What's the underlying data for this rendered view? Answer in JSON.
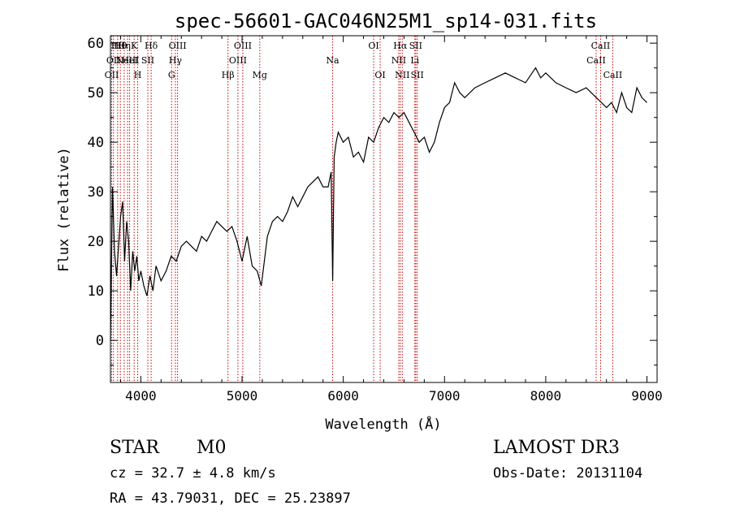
{
  "chart_data": {
    "type": "line",
    "title": "spec-56601-GAC046N25M1_sp14-031.fits",
    "xlabel": "Wavelength (Å)",
    "ylabel": "Flux (relative)",
    "xlim": [
      3700,
      9100
    ],
    "ylim": [
      -8.5,
      61.5
    ],
    "xticks": [
      4000,
      5000,
      6000,
      7000,
      8000,
      9000
    ],
    "yticks": [
      0,
      10,
      20,
      30,
      40,
      50,
      60
    ],
    "grid": false,
    "line_color": "#000000",
    "marker_color": "#cc0000",
    "series": [
      {
        "x": [
          3700,
          3720,
          3740,
          3760,
          3780,
          3800,
          3820,
          3840,
          3860,
          3880,
          3900,
          3920,
          3940,
          3960,
          3980,
          4000,
          4030,
          4060,
          4090,
          4120,
          4150,
          4200,
          4250,
          4300,
          4350,
          4400,
          4450,
          4500,
          4550,
          4600,
          4650,
          4700,
          4750,
          4800,
          4850,
          4900,
          4950,
          5000,
          5050,
          5100,
          5150,
          5190,
          5250,
          5300,
          5350,
          5400,
          5450,
          5500,
          5550,
          5600,
          5650,
          5700,
          5750,
          5800,
          5850,
          5880,
          5895,
          5910,
          5930,
          5950,
          6000,
          6050,
          6100,
          6150,
          6200,
          6250,
          6300,
          6350,
          6400,
          6450,
          6500,
          6550,
          6600,
          6650,
          6700,
          6750,
          6800,
          6850,
          6900,
          6950,
          7000,
          7050,
          7100,
          7150,
          7200,
          7300,
          7400,
          7500,
          7600,
          7700,
          7800,
          7900,
          7950,
          8000,
          8100,
          8200,
          8300,
          8400,
          8500,
          8550,
          8600,
          8650,
          8700,
          8750,
          8800,
          8850,
          8900,
          8950,
          9000
        ],
        "y": [
          0,
          31,
          18,
          13,
          19,
          25,
          28,
          16,
          24,
          20,
          10,
          18,
          14,
          17,
          12,
          14,
          11,
          9,
          13,
          10,
          15,
          12,
          14,
          17,
          16,
          19,
          20,
          19,
          18,
          21,
          20,
          22,
          24,
          23,
          22,
          23,
          20,
          16,
          21,
          15,
          14,
          11,
          21,
          24,
          25,
          24,
          26,
          29,
          27,
          29,
          31,
          32,
          33,
          31,
          31,
          34,
          12,
          37,
          40,
          42,
          40,
          41,
          37,
          38,
          36,
          41,
          40,
          43,
          45,
          44,
          46,
          45,
          46,
          44,
          42,
          40,
          41,
          38,
          40,
          44,
          47,
          48,
          52,
          50,
          49,
          51,
          52,
          53,
          54,
          53,
          52,
          55,
          53,
          54,
          52,
          51,
          50,
          51,
          49,
          48,
          47,
          48,
          46,
          50,
          47,
          46,
          51,
          49,
          48
        ]
      }
    ],
    "lines": [
      {
        "x": 3712,
        "row": 3,
        "label": "OII"
      },
      {
        "x": 3730,
        "row": 2,
        "label": "OII"
      },
      {
        "x": 3771,
        "row": 1,
        "label": "Hθ"
      },
      {
        "x": 3798,
        "row": 1,
        "label": "Hθ"
      },
      {
        "x": 3835,
        "row": 1,
        "label": "Hη"
      },
      {
        "x": 3869,
        "row": 2,
        "label": "NeIII"
      },
      {
        "x": 3889,
        "row": 2,
        "label": "HeI"
      },
      {
        "x": 3934,
        "row": 1,
        "label": "K"
      },
      {
        "x": 3969,
        "row": 3,
        "label": "H"
      },
      {
        "x": 4069,
        "row": 2,
        "label": "SII"
      },
      {
        "x": 4102,
        "row": 1,
        "label": "Hδ"
      },
      {
        "x": 4304,
        "row": 3,
        "label": "G"
      },
      {
        "x": 4341,
        "row": 2,
        "label": "Hγ"
      },
      {
        "x": 4363,
        "row": 1,
        "label": "OIII"
      },
      {
        "x": 4861,
        "row": 3,
        "label": "Hβ"
      },
      {
        "x": 4959,
        "row": 2,
        "label": "OIII"
      },
      {
        "x": 5007,
        "row": 1,
        "label": "OIII"
      },
      {
        "x": 5175,
        "row": 3,
        "label": "Mg"
      },
      {
        "x": 5894,
        "row": 2,
        "label": "Na"
      },
      {
        "x": 6300,
        "row": 1,
        "label": "OI"
      },
      {
        "x": 6364,
        "row": 3,
        "label": "OI"
      },
      {
        "x": 6548,
        "row": 2,
        "label": "NII"
      },
      {
        "x": 6563,
        "row": 1,
        "label": "Hα"
      },
      {
        "x": 6583,
        "row": 3,
        "label": "NII"
      },
      {
        "x": 6707,
        "row": 2,
        "label": "Li"
      },
      {
        "x": 6716,
        "row": 1,
        "label": "SII"
      },
      {
        "x": 6731,
        "row": 3,
        "label": "SII"
      },
      {
        "x": 8498,
        "row": 2,
        "label": "CaII"
      },
      {
        "x": 8542,
        "row": 1,
        "label": "CaII"
      },
      {
        "x": 8662,
        "row": 3,
        "label": "CaII"
      }
    ]
  },
  "info": {
    "object_class": "STAR",
    "subclass": "M0",
    "survey": "LAMOST DR3",
    "redshift": "cz = 32.7 ± 4.8 km/s",
    "obs_date": "Obs-Date: 20131104",
    "coords": "RA =  43.79031, DEC =  25.23897"
  }
}
